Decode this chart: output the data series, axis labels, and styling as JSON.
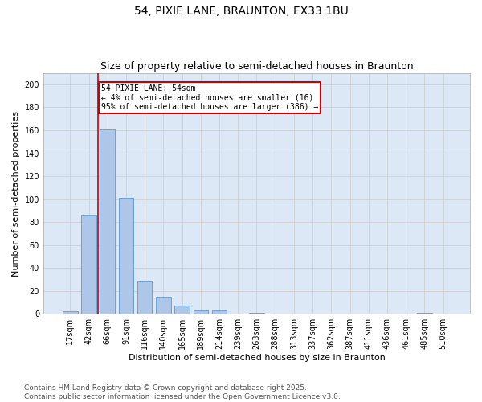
{
  "title_line1": "54, PIXIE LANE, BRAUNTON, EX33 1BU",
  "title_line2": "Size of property relative to semi-detached houses in Braunton",
  "xlabel": "Distribution of semi-detached houses by size in Braunton",
  "ylabel": "Number of semi-detached properties",
  "categories": [
    "17sqm",
    "42sqm",
    "66sqm",
    "91sqm",
    "116sqm",
    "140sqm",
    "165sqm",
    "189sqm",
    "214sqm",
    "239sqm",
    "263sqm",
    "288sqm",
    "313sqm",
    "337sqm",
    "362sqm",
    "387sqm",
    "411sqm",
    "436sqm",
    "461sqm",
    "485sqm",
    "510sqm"
  ],
  "values": [
    2,
    86,
    161,
    101,
    28,
    14,
    7,
    3,
    3,
    0,
    1,
    0,
    0,
    0,
    0,
    0,
    0,
    0,
    0,
    1,
    0
  ],
  "bar_color": "#aec6e8",
  "bar_edgecolor": "#5b9bd5",
  "vline_x_index": 1.5,
  "vline_color": "#cc0000",
  "annotation_text": "54 PIXIE LANE: 54sqm\n← 4% of semi-detached houses are smaller (16)\n95% of semi-detached houses are larger (386) →",
  "annotation_box_color": "#cc0000",
  "ylim": [
    0,
    210
  ],
  "yticks": [
    0,
    20,
    40,
    60,
    80,
    100,
    120,
    140,
    160,
    180,
    200
  ],
  "grid_color": "#cccccc",
  "background_color": "#dce8f5",
  "footer_text": "Contains HM Land Registry data © Crown copyright and database right 2025.\nContains public sector information licensed under the Open Government Licence v3.0.",
  "title_fontsize": 10,
  "subtitle_fontsize": 9,
  "axis_label_fontsize": 8,
  "tick_fontsize": 7,
  "footer_fontsize": 6.5
}
